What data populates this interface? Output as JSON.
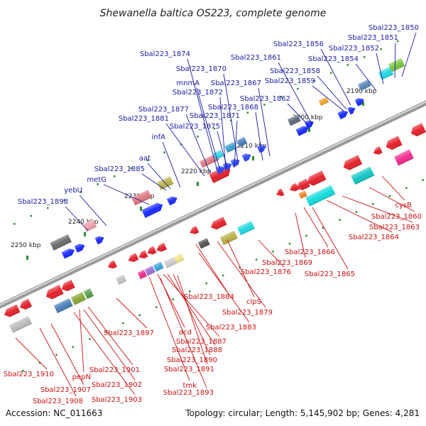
{
  "title": "Shewanella baltica OS223, complete genome",
  "footer": {
    "accession": "Accession: NC_011663",
    "summary": "Topology: circular; Length: 5,145,902 bp; Genes: 4,281"
  },
  "colors": {
    "top_labels": "#1a1aa6",
    "bottom_labels": "#cc1111",
    "kbp_ticks": "#1f7a1f",
    "backbone": "#888888"
  },
  "kbp_ticks": [
    {
      "label": "2190 kbp"
    },
    {
      "label": "2200 kbp"
    },
    {
      "label": "2210 kbp"
    },
    {
      "label": "2220 kbp"
    },
    {
      "label": "2230 kbp"
    },
    {
      "label": "2240 kbp"
    },
    {
      "label": "2250 kbp"
    }
  ],
  "top_genes": [
    "Sbal223_1850",
    "Sbal223_1851",
    "Sbal223_1852",
    "Sbal223_1854",
    "Sbal223_1856",
    "Sbal223_1858",
    "Sbal223_1859",
    "Sbal223_1861",
    "Sbal223_1862",
    "Sbal223_1867",
    "Sbal223_1868",
    "Sbal223_1870",
    "Sbal223_1871",
    "Sbal223_1872",
    "Sbal223_1874",
    "mnmA",
    "Sbal223_1875",
    "Sbal223_1877",
    "Sbal223_1881",
    "infA",
    "aat",
    "Sbal223_1885",
    "metG",
    "yebU",
    "Sbal223_1898"
  ],
  "bottom_genes": [
    "cysB",
    "Sbal223_1860",
    "Sbal223_1863",
    "Sbal223_1864",
    "Sbal223_1865",
    "Sbal223_1866",
    "Sbal223_1869",
    "Sbal223_1876",
    "clpS",
    "Sbal223_1879",
    "Sbal223_1884",
    "Sbal223_1883",
    "Sbal223_1897",
    "dcd",
    "Sbal223_1887",
    "Sbal223_1888",
    "Sbal223_1890",
    "Sbal223_1891",
    "tmk",
    "Sbal223_1893",
    "Sbal223_1901",
    "Sbal223_1902",
    "Sbal223_1903",
    "pepN",
    "Sbal223_1907",
    "Sbal223_1908",
    "Sbal223_1910"
  ]
}
